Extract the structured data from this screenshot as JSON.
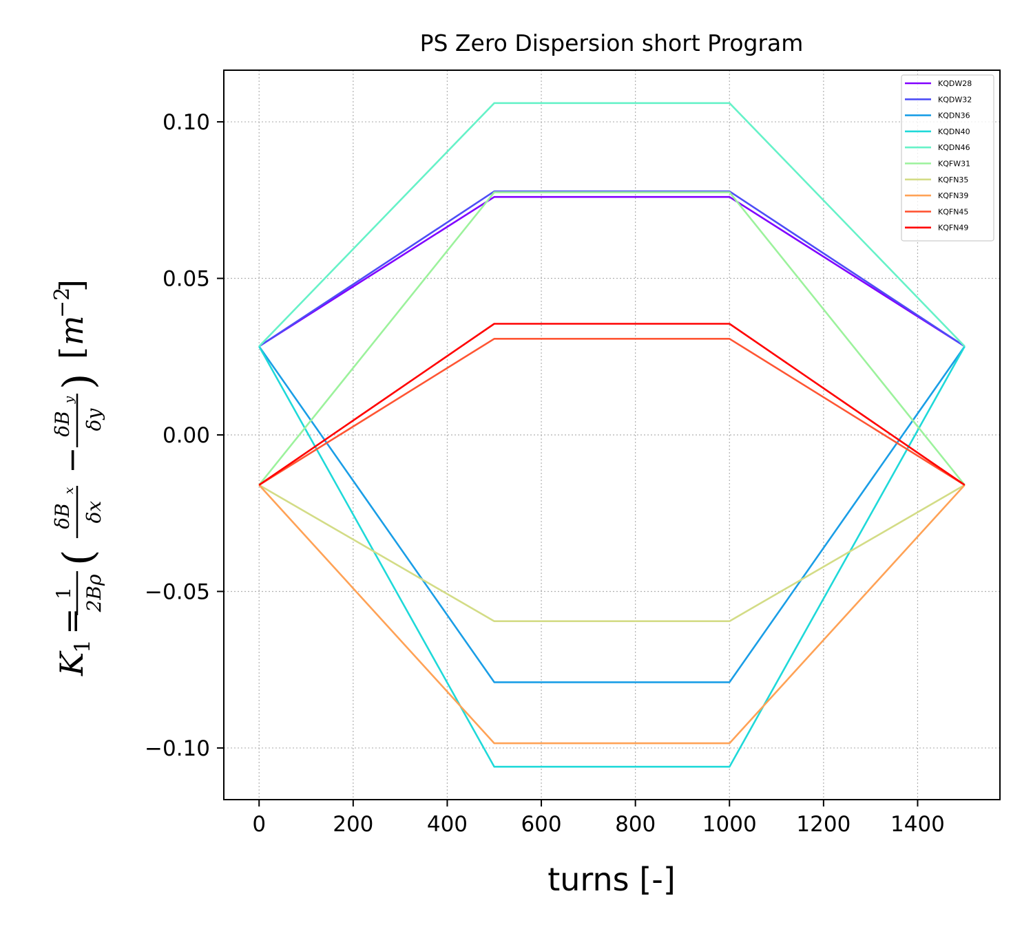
{
  "chart_data": {
    "type": "line",
    "title": "PS Zero Dispersion short Program",
    "xlabel": "turns [-]",
    "ylabel": "K_1 = (1/(2Bρ)) (δB_x/δx − δB_y/δy) [m^-2]",
    "xlim": [
      -75,
      1575
    ],
    "ylim": [
      -0.1165,
      0.1165
    ],
    "x_ticks": [
      0,
      200,
      400,
      600,
      800,
      1000,
      1200,
      1400
    ],
    "y_ticks": [
      0.1,
      0.05,
      0.0,
      -0.05,
      -0.1
    ],
    "x_tick_labels": [
      "0",
      "200",
      "400",
      "600",
      "800",
      "1000",
      "1200",
      "1400"
    ],
    "y_tick_labels": [
      "0.10",
      "0.05",
      "0.00",
      "−0.05",
      "−0.10"
    ],
    "grid": true,
    "legend_position": "top-right",
    "x": [
      0,
      500,
      1000,
      1500
    ],
    "series": [
      {
        "name": "KQDW28",
        "color": "#8000ff",
        "values": [
          0.0283,
          0.076,
          0.076,
          0.0283
        ]
      },
      {
        "name": "KQDW32",
        "color": "#4d4df6",
        "values": [
          0.0283,
          0.0778,
          0.0778,
          0.0283
        ]
      },
      {
        "name": "KQDN36",
        "color": "#1a9ee6",
        "values": [
          0.0283,
          -0.079,
          -0.079,
          0.0283
        ]
      },
      {
        "name": "KQDN40",
        "color": "#1fd9d9",
        "values": [
          0.0283,
          -0.106,
          -0.106,
          0.0283
        ]
      },
      {
        "name": "KQDN46",
        "color": "#66f2c8",
        "values": [
          0.0283,
          0.106,
          0.106,
          0.0283
        ]
      },
      {
        "name": "KQFW31",
        "color": "#9cf29c",
        "values": [
          -0.016,
          0.0775,
          0.0775,
          -0.016
        ]
      },
      {
        "name": "KQFN35",
        "color": "#d3dc86",
        "values": [
          -0.016,
          -0.0595,
          -0.0595,
          -0.016
        ]
      },
      {
        "name": "KQFN39",
        "color": "#ffa256",
        "values": [
          -0.016,
          -0.0985,
          -0.0985,
          -0.016
        ]
      },
      {
        "name": "KQFN45",
        "color": "#ff5533",
        "values": [
          -0.016,
          0.0307,
          0.0307,
          -0.016
        ]
      },
      {
        "name": "KQFN49",
        "color": "#ff0000",
        "values": [
          -0.016,
          0.0355,
          0.0355,
          -0.016
        ]
      }
    ]
  }
}
